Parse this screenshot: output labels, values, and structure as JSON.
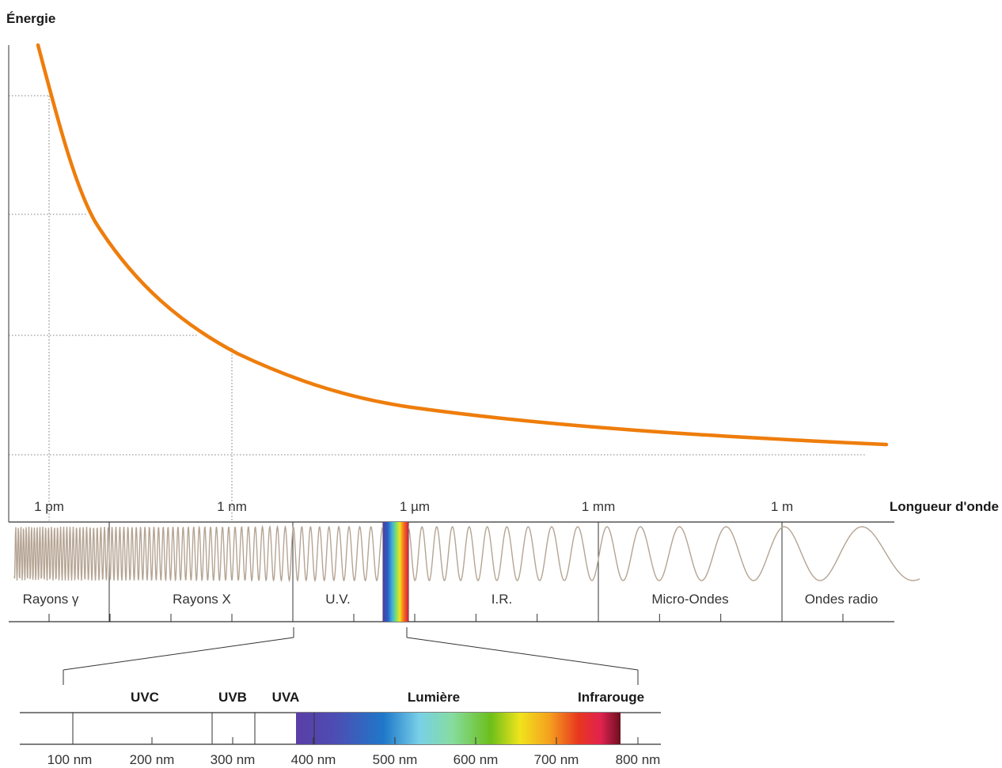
{
  "axis": {
    "y_label": "Énergie",
    "x_label": "Longueur d'onde"
  },
  "wavelength_ticks": [
    "1 pm",
    "1 nm",
    "1 µm",
    "1 mm",
    "1 m"
  ],
  "bands": [
    "Rayons γ",
    "Rayons X",
    "U.V.",
    "I.R.",
    "Micro-Ondes",
    "Ondes radio"
  ],
  "sub_bands": [
    "UVC",
    "UVB",
    "UVA",
    "Lumière",
    "Infrarouge"
  ],
  "nm_ticks": [
    "100 nm",
    "200 nm",
    "300 nm",
    "400 nm",
    "500 nm",
    "600 nm",
    "700 nm",
    "800 nm"
  ],
  "colors": {
    "energy_curve": "#ee7d0c",
    "wave": "#b5a493",
    "axis": "#333333"
  },
  "visible_spectrum_colors": [
    "#5b3fa6",
    "#4a51b4",
    "#1e78c8",
    "#7fd0e6",
    "#86dca0",
    "#6cbf1a",
    "#f2e31c",
    "#f5a21e",
    "#e8371f",
    "#e0224f",
    "#6b1020"
  ]
}
